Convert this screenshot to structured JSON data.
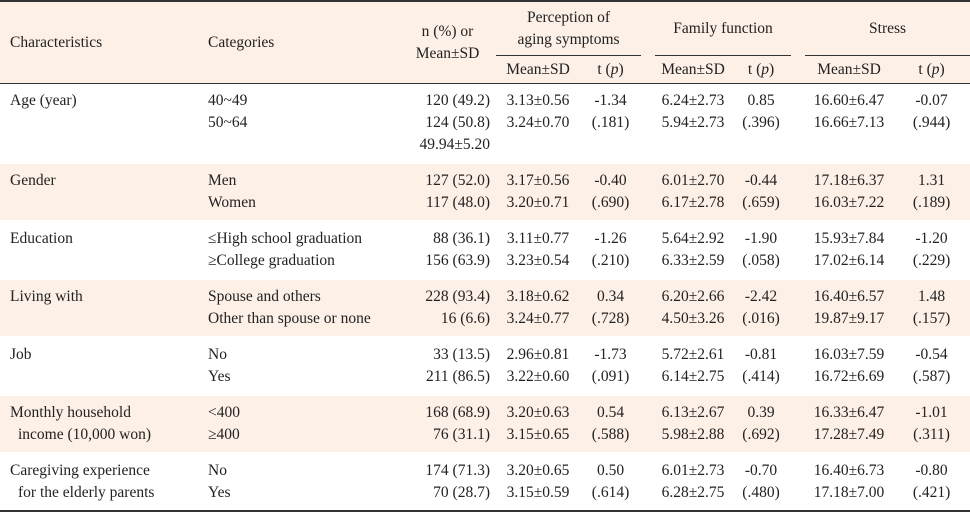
{
  "header": {
    "characteristics": "Characteristics",
    "categories": "Categories",
    "n_line1": "n (%) or",
    "n_line2": "Mean±SD",
    "perception_line1": "Perception of",
    "perception_line2": "aging symptoms",
    "family": "Family function",
    "stress": "Stress",
    "meansd": "Mean±SD",
    "t_pre": "t (",
    "t_p": "p",
    "t_post": ")"
  },
  "rows": [
    {
      "char": [
        "Age (year)"
      ],
      "cats": [
        "40~49",
        "50~64",
        ""
      ],
      "n": [
        "120 (49.2)",
        "124 (50.8)",
        "49.94±5.20"
      ],
      "pm": [
        "3.13±0.56",
        "3.24±0.70",
        ""
      ],
      "pt": [
        "-1.34",
        "(.181)",
        ""
      ],
      "fm": [
        "6.24±2.73",
        "5.94±2.73",
        ""
      ],
      "ft": [
        "0.85",
        "(.396)",
        ""
      ],
      "sm": [
        "16.60±6.47",
        "16.66±7.13",
        ""
      ],
      "st": [
        "-0.07",
        "(.944)",
        ""
      ]
    },
    {
      "char": [
        "Gender"
      ],
      "cats": [
        "Men",
        "Women"
      ],
      "n": [
        "127 (52.0)",
        "117 (48.0)"
      ],
      "pm": [
        "3.17±0.56",
        "3.20±0.71"
      ],
      "pt": [
        "-0.40",
        "(.690)"
      ],
      "fm": [
        "6.01±2.70",
        "6.17±2.78"
      ],
      "ft": [
        "-0.44",
        "(.659)"
      ],
      "sm": [
        "17.18±6.37",
        "16.03±7.22"
      ],
      "st": [
        "1.31",
        "(.189)"
      ]
    },
    {
      "char": [
        "Education"
      ],
      "cats": [
        "≤High school graduation",
        "≥College graduation"
      ],
      "n": [
        "88 (36.1)",
        "156 (63.9)"
      ],
      "pm": [
        "3.11±0.77",
        "3.23±0.54"
      ],
      "pt": [
        "-1.26",
        "(.210)"
      ],
      "fm": [
        "5.64±2.92",
        "6.33±2.59"
      ],
      "ft": [
        "-1.90",
        "(.058)"
      ],
      "sm": [
        "15.93±7.84",
        "17.02±6.14"
      ],
      "st": [
        "-1.20",
        "(.229)"
      ]
    },
    {
      "char": [
        "Living with"
      ],
      "cats": [
        "Spouse and others",
        "Other than spouse or none"
      ],
      "n": [
        "228 (93.4)",
        "16 (6.6)"
      ],
      "pm": [
        "3.18±0.62",
        "3.24±0.77"
      ],
      "pt": [
        "0.34",
        "(.728)"
      ],
      "fm": [
        "6.20±2.66",
        "4.50±3.26"
      ],
      "ft": [
        "-2.42",
        "(.016)"
      ],
      "sm": [
        "16.40±6.57",
        "19.87±9.17"
      ],
      "st": [
        "1.48",
        "(.157)"
      ]
    },
    {
      "char": [
        "Job"
      ],
      "cats": [
        "No",
        "Yes"
      ],
      "n": [
        "33 (13.5)",
        "211 (86.5)"
      ],
      "pm": [
        "2.96±0.81",
        "3.22±0.60"
      ],
      "pt": [
        "-1.73",
        "(.091)"
      ],
      "fm": [
        "5.72±2.61",
        "6.14±2.75"
      ],
      "ft": [
        "-0.81",
        "(.414)"
      ],
      "sm": [
        "16.03±7.59",
        "16.72±6.69"
      ],
      "st": [
        "-0.54",
        "(.587)"
      ]
    },
    {
      "char": [
        "Monthly household",
        "  income (10,000 won)"
      ],
      "cats": [
        "<400",
        "≥400"
      ],
      "n": [
        "168 (68.9)",
        "76 (31.1)"
      ],
      "pm": [
        "3.20±0.63",
        "3.15±0.65"
      ],
      "pt": [
        "0.54",
        "(.588)"
      ],
      "fm": [
        "6.13±2.67",
        "5.98±2.88"
      ],
      "ft": [
        "0.39",
        "(.692)"
      ],
      "sm": [
        "16.33±6.47",
        "17.28±7.49"
      ],
      "st": [
        "-1.01",
        "(.311)"
      ]
    },
    {
      "char": [
        "Caregiving experience",
        "  for the elderly parents"
      ],
      "cats": [
        "No",
        "Yes"
      ],
      "n": [
        "174 (71.3)",
        "70 (28.7)"
      ],
      "pm": [
        "3.20±0.65",
        "3.15±0.59"
      ],
      "pt": [
        "0.50",
        "(.614)"
      ],
      "fm": [
        "6.01±2.73",
        "6.28±2.75"
      ],
      "ft": [
        "-0.70",
        "(.480)"
      ],
      "sm": [
        "16.40±6.73",
        "17.18±7.00"
      ],
      "st": [
        "-0.80",
        "(.421)"
      ]
    }
  ]
}
